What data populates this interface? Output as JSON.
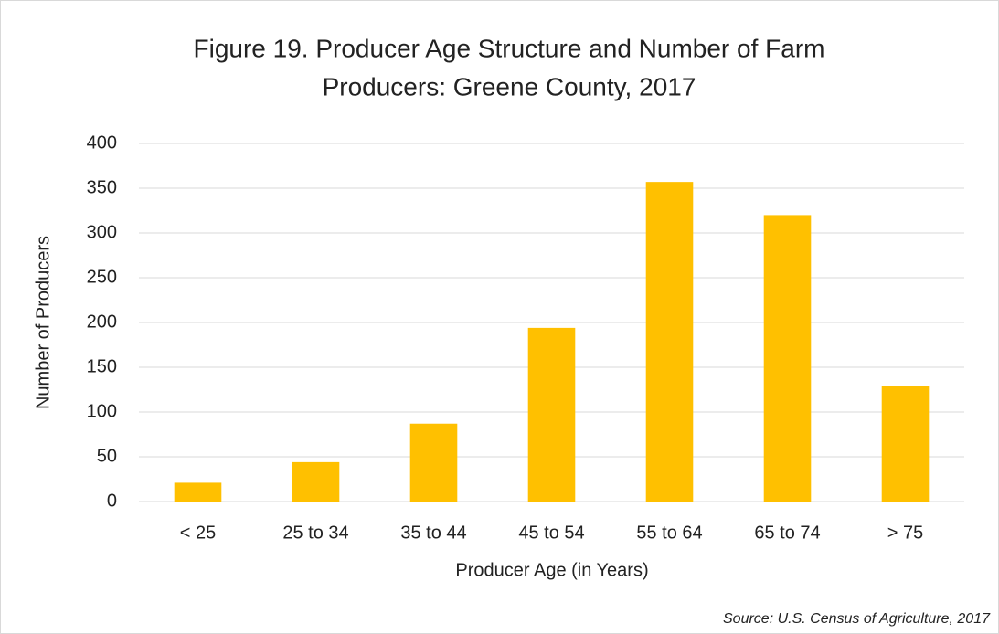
{
  "chart_data": {
    "type": "bar",
    "title": [
      "Figure 19. Producer Age Structure and Number of Farm",
      "Producers: Greene County, 2017"
    ],
    "x_label": "Producer Age (in Years)",
    "y_label": "Number of Producers",
    "source": "Source: U.S. Census of Agriculture, 2017",
    "categories": [
      "< 25",
      "25 to 34",
      "35 to 44",
      "45 to 54",
      "55 to 64",
      "65 to 74",
      "> 75"
    ],
    "values": [
      21,
      44,
      87,
      194,
      357,
      320,
      129
    ],
    "color": "#ffc000",
    "ylim": [
      0,
      400
    ],
    "yticks": [
      0,
      50,
      100,
      150,
      200,
      250,
      300,
      350,
      400
    ],
    "grid": true
  }
}
